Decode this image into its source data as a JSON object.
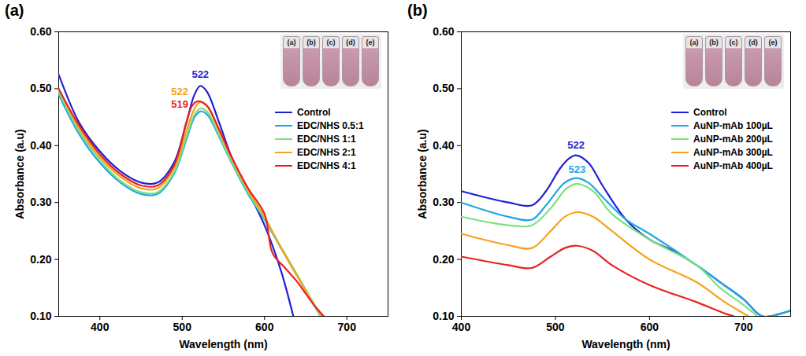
{
  "chart_data": [
    {
      "type": "line",
      "title": "(a)",
      "x_label": "Wavelength (nm)",
      "y_label": "Absorbance (a.u)",
      "xlim": [
        350,
        750
      ],
      "xticks": [
        400,
        500,
        600,
        700
      ],
      "ylim": [
        0.1,
        0.6
      ],
      "yticks": [
        0.1,
        0.2,
        0.3,
        0.4,
        0.5,
        0.6
      ],
      "grid": false,
      "legend": "right",
      "inset_labels": [
        "(a)",
        "(b)",
        "(c)",
        "(d)",
        "(e)"
      ],
      "series": [
        {
          "name": "Control",
          "color": "#1f1fd6",
          "x": [
            350,
            375,
            400,
            425,
            450,
            470,
            490,
            505,
            515,
            522,
            530,
            545,
            560,
            580,
            600,
            620,
            635
          ],
          "values": [
            0.525,
            0.44,
            0.39,
            0.355,
            0.335,
            0.335,
            0.37,
            0.44,
            0.49,
            0.505,
            0.495,
            0.44,
            0.38,
            0.32,
            0.26,
            0.18,
            0.1
          ]
        },
        {
          "name": "EDC/NHS 0.5:1",
          "color": "#1fa7e6",
          "x": [
            350,
            375,
            400,
            425,
            450,
            470,
            490,
            505,
            515,
            522,
            530,
            545,
            560,
            580,
            600,
            620,
            640,
            660,
            668
          ],
          "values": [
            0.49,
            0.42,
            0.37,
            0.335,
            0.315,
            0.315,
            0.35,
            0.41,
            0.45,
            0.46,
            0.455,
            0.415,
            0.37,
            0.315,
            0.27,
            0.22,
            0.17,
            0.12,
            0.1
          ]
        },
        {
          "name": "EDC/NHS 1:1",
          "color": "#7ee07e",
          "x": [
            350,
            375,
            400,
            425,
            450,
            470,
            490,
            505,
            515,
            522,
            530,
            545,
            560,
            580,
            600,
            620,
            640,
            660,
            668
          ],
          "values": [
            0.495,
            0.425,
            0.375,
            0.338,
            0.318,
            0.318,
            0.353,
            0.415,
            0.455,
            0.465,
            0.46,
            0.418,
            0.372,
            0.318,
            0.272,
            0.222,
            0.172,
            0.122,
            0.1
          ]
        },
        {
          "name": "EDC/NHS 2:1",
          "color": "#f5a31a",
          "x": [
            350,
            375,
            400,
            425,
            450,
            470,
            490,
            505,
            515,
            522,
            530,
            545,
            560,
            580,
            600,
            620,
            640,
            660,
            670
          ],
          "values": [
            0.5,
            0.43,
            0.38,
            0.345,
            0.325,
            0.325,
            0.36,
            0.425,
            0.465,
            0.477,
            0.47,
            0.425,
            0.378,
            0.322,
            0.275,
            0.22,
            0.17,
            0.12,
            0.1
          ]
        },
        {
          "name": "EDC/NHS 4:1",
          "color": "#e8231f",
          "x": [
            350,
            375,
            400,
            425,
            450,
            470,
            490,
            505,
            512,
            519,
            530,
            545,
            560,
            580,
            600,
            610,
            625,
            640,
            650,
            660,
            672
          ],
          "values": [
            0.5,
            0.435,
            0.385,
            0.35,
            0.33,
            0.33,
            0.365,
            0.44,
            0.47,
            0.478,
            0.47,
            0.428,
            0.38,
            0.325,
            0.28,
            0.21,
            0.185,
            0.16,
            0.14,
            0.12,
            0.1
          ]
        }
      ],
      "annotations": [
        {
          "text": "522",
          "x": 522,
          "y": 0.525,
          "color": "#1f1fd6"
        },
        {
          "text": "522",
          "x": 497,
          "y": 0.495,
          "color": "#f5a31a"
        },
        {
          "text": "519",
          "x": 497,
          "y": 0.473,
          "color": "#e8231f"
        }
      ]
    },
    {
      "type": "line",
      "title": "(b)",
      "x_label": "Wavelength (nm)",
      "y_label": "Absorbance (a.u)",
      "xlim": [
        400,
        750
      ],
      "xticks": [
        400,
        500,
        600,
        700
      ],
      "ylim": [
        0.1,
        0.6
      ],
      "yticks": [
        0.1,
        0.2,
        0.3,
        0.4,
        0.5,
        0.6
      ],
      "grid": false,
      "legend": "right",
      "inset_labels": [
        "(a)",
        "(b)",
        "(c)",
        "(d)",
        "(e)"
      ],
      "series": [
        {
          "name": "Control",
          "color": "#1f1fd6",
          "x": [
            400,
            450,
            475,
            490,
            505,
            515,
            522,
            535,
            550,
            575,
            600,
            625,
            650,
            675,
            700,
            720,
            740,
            750
          ],
          "values": [
            0.32,
            0.3,
            0.295,
            0.32,
            0.36,
            0.378,
            0.383,
            0.37,
            0.33,
            0.27,
            0.235,
            0.215,
            0.19,
            0.16,
            0.13,
            0.1,
            0.105,
            0.11
          ]
        },
        {
          "name": "AuNP-mAb 100µL",
          "color": "#1fa7e6",
          "x": [
            400,
            450,
            475,
            490,
            510,
            523,
            535,
            550,
            575,
            600,
            650,
            675,
            700,
            720,
            740,
            750
          ],
          "values": [
            0.3,
            0.275,
            0.27,
            0.295,
            0.335,
            0.343,
            0.335,
            0.31,
            0.27,
            0.245,
            0.19,
            0.16,
            0.13,
            0.1,
            0.105,
            0.11
          ]
        },
        {
          "name": "AuNP-mAb 200µL",
          "color": "#7ee07e",
          "x": [
            400,
            450,
            475,
            495,
            512,
            523,
            540,
            560,
            600,
            650,
            675,
            700,
            715
          ],
          "values": [
            0.275,
            0.26,
            0.26,
            0.29,
            0.325,
            0.333,
            0.32,
            0.28,
            0.235,
            0.19,
            0.15,
            0.12,
            0.1
          ]
        },
        {
          "name": "AuNP-mAb 300µL",
          "color": "#f5a31a",
          "x": [
            400,
            450,
            475,
            495,
            510,
            523,
            540,
            560,
            600,
            650,
            680,
            700,
            705
          ],
          "values": [
            0.245,
            0.225,
            0.22,
            0.25,
            0.275,
            0.283,
            0.275,
            0.25,
            0.2,
            0.16,
            0.125,
            0.105,
            0.1
          ]
        },
        {
          "name": "AuNP-mAb 400µL",
          "color": "#e8231f",
          "x": [
            400,
            450,
            475,
            495,
            510,
            523,
            540,
            560,
            600,
            650,
            680,
            690
          ],
          "values": [
            0.205,
            0.19,
            0.185,
            0.205,
            0.22,
            0.224,
            0.215,
            0.19,
            0.155,
            0.125,
            0.105,
            0.1
          ]
        }
      ],
      "annotations": [
        {
          "text": "522",
          "x": 522,
          "y": 0.4,
          "color": "#1f1fd6"
        },
        {
          "text": "523",
          "x": 523,
          "y": 0.358,
          "color": "#1fa7e6"
        }
      ]
    }
  ]
}
